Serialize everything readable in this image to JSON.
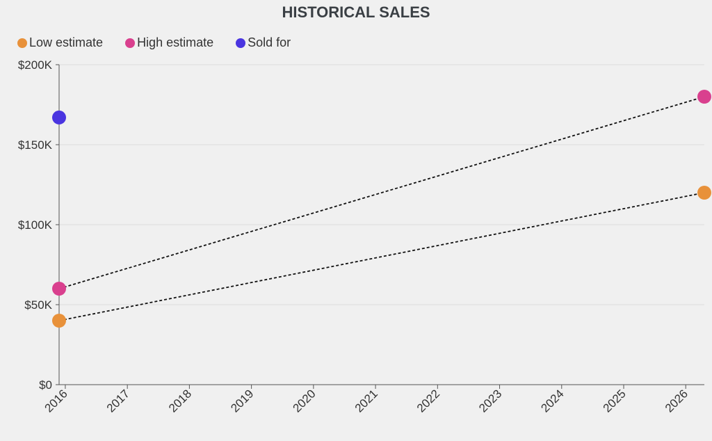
{
  "chart_data": {
    "type": "line",
    "title": "HISTORICAL SALES",
    "xlabel": "",
    "ylabel": "",
    "x_ticks": [
      "2016",
      "2017",
      "2018",
      "2019",
      "2020",
      "2021",
      "2022",
      "2023",
      "2024",
      "2025",
      "2026"
    ],
    "xlim": [
      2015.9,
      2026.3
    ],
    "ylim": [
      0,
      200000
    ],
    "y_ticks": [
      0,
      50000,
      100000,
      150000,
      200000
    ],
    "y_tick_labels": [
      "$0",
      "$50K",
      "$100K",
      "$150K",
      "$200K"
    ],
    "grid": true,
    "legend": "top-left",
    "series": [
      {
        "name": "Low estimate",
        "color": "#e8913a",
        "line": "dotted",
        "points": [
          {
            "x": 2015.9,
            "y": 40000
          },
          {
            "x": 2026.3,
            "y": 120000
          }
        ]
      },
      {
        "name": "High estimate",
        "color": "#d9408e",
        "line": "dotted",
        "points": [
          {
            "x": 2015.9,
            "y": 60000
          },
          {
            "x": 2026.3,
            "y": 180000
          }
        ]
      },
      {
        "name": "Sold for",
        "color": "#4a35e0",
        "line": "none",
        "points": [
          {
            "x": 2015.9,
            "y": 167000
          }
        ]
      }
    ]
  }
}
